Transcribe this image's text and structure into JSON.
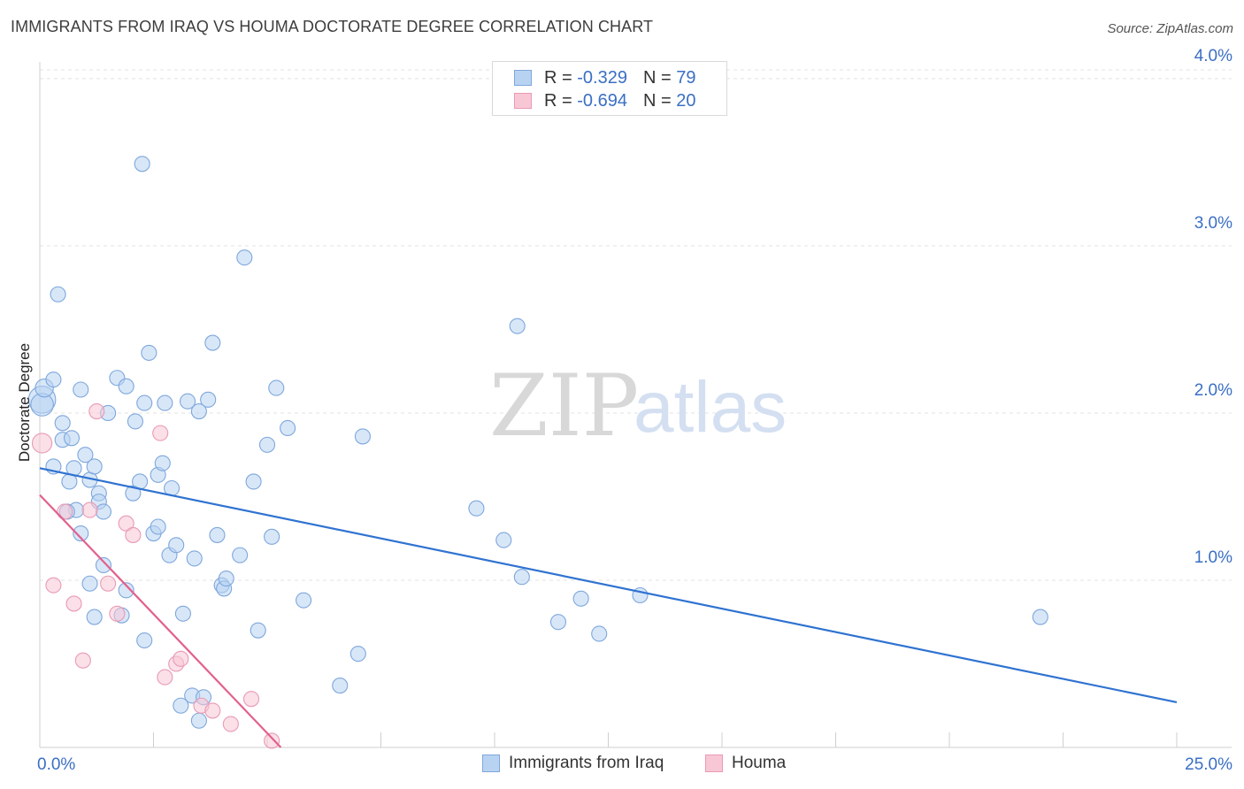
{
  "title": "IMMIGRANTS FROM IRAQ VS HOUMA DOCTORATE DEGREE CORRELATION CHART",
  "source": "Source: ZipAtlas.com",
  "watermark": {
    "zip": "ZIP",
    "atlas": "atlas"
  },
  "legend": {
    "rows": [
      {
        "r_label": "R =",
        "r_value": "-0.329",
        "n_label": "N =",
        "n_value": "79",
        "fill": "#b8d3f2",
        "stroke": "#7ea7dc"
      },
      {
        "r_label": "R =",
        "r_value": "-0.694",
        "n_label": "N =",
        "n_value": "20",
        "fill": "#f8c7d6",
        "stroke": "#e99ab4"
      }
    ]
  },
  "bottom_legend": [
    {
      "label": "Immigrants from Iraq",
      "fill": "#b8d3f2",
      "stroke": "#7ea7dc"
    },
    {
      "label": "Houma",
      "fill": "#f8c7d6",
      "stroke": "#e99ab4"
    }
  ],
  "chart_data": {
    "type": "scatter",
    "title": "IMMIGRANTS FROM IRAQ VS HOUMA DOCTORATE DEGREE CORRELATION CHART",
    "xlabel": "",
    "ylabel": "Doctorate Degree",
    "xlim": [
      0,
      25
    ],
    "ylim": [
      0,
      4.1
    ],
    "x_tick_labels": [
      {
        "value": 0,
        "label": "0.0%"
      },
      {
        "value": 25,
        "label": "25.0%"
      }
    ],
    "y_tick_labels": [
      {
        "value": 1,
        "label": "1.0%"
      },
      {
        "value": 2,
        "label": "2.0%"
      },
      {
        "value": 3,
        "label": "3.0%"
      },
      {
        "value": 4,
        "label": "4.0%"
      }
    ],
    "grid": true,
    "series": [
      {
        "name": "Immigrants from Iraq",
        "color": "#b8d3f2",
        "stroke": "#7ea7dc",
        "line_color": "#2f73d1",
        "trend": {
          "x0": 0,
          "y0": 1.67,
          "x1": 25,
          "y1": 0.27
        },
        "points": [
          [
            0.05,
            2.08,
            1.8
          ],
          [
            0.05,
            2.05,
            1.5
          ],
          [
            0.1,
            2.15,
            1.2
          ],
          [
            0.3,
            2.2,
            1.0
          ],
          [
            0.4,
            2.71,
            1.0
          ],
          [
            0.5,
            1.94,
            1.0
          ],
          [
            0.5,
            1.84,
            1.0
          ],
          [
            0.3,
            1.68,
            1.0
          ],
          [
            0.7,
            1.85,
            1.0
          ],
          [
            0.75,
            1.67,
            1.0
          ],
          [
            0.8,
            1.42,
            1.0
          ],
          [
            0.6,
            1.41,
            1.0
          ],
          [
            0.65,
            1.59,
            1.0
          ],
          [
            0.9,
            2.14,
            1.0
          ],
          [
            1.0,
            1.75,
            1.0
          ],
          [
            0.9,
            1.28,
            1.0
          ],
          [
            1.1,
            1.6,
            1.0
          ],
          [
            1.2,
            1.68,
            1.0
          ],
          [
            1.3,
            1.52,
            1.0
          ],
          [
            1.3,
            1.47,
            1.0
          ],
          [
            1.4,
            1.41,
            1.0
          ],
          [
            1.5,
            2.0,
            1.0
          ],
          [
            1.1,
            0.98,
            1.0
          ],
          [
            1.4,
            1.09,
            1.0
          ],
          [
            1.7,
            2.21,
            1.0
          ],
          [
            1.9,
            2.16,
            1.0
          ],
          [
            2.1,
            1.95,
            1.0
          ],
          [
            2.05,
            1.52,
            1.0
          ],
          [
            2.2,
            1.59,
            1.0
          ],
          [
            2.25,
            3.49,
            1.0
          ],
          [
            2.3,
            2.06,
            1.0
          ],
          [
            2.4,
            2.36,
            1.0
          ],
          [
            1.8,
            0.79,
            1.0
          ],
          [
            1.9,
            0.94,
            1.0
          ],
          [
            2.3,
            0.64,
            1.0
          ],
          [
            2.5,
            1.28,
            1.0
          ],
          [
            2.6,
            1.32,
            1.0
          ],
          [
            2.6,
            1.63,
            1.0
          ],
          [
            2.7,
            1.7,
            1.0
          ],
          [
            2.75,
            2.06,
            1.0
          ],
          [
            2.85,
            1.15,
            1.0
          ],
          [
            2.9,
            1.55,
            1.0
          ],
          [
            3.0,
            1.21,
            1.0
          ],
          [
            3.15,
            0.8,
            1.0
          ],
          [
            3.25,
            2.07,
            1.0
          ],
          [
            3.4,
            1.13,
            1.0
          ],
          [
            3.5,
            2.01,
            1.0
          ],
          [
            3.1,
            0.25,
            1.0
          ],
          [
            3.35,
            0.31,
            1.0
          ],
          [
            3.5,
            0.16,
            1.0
          ],
          [
            3.6,
            0.3,
            1.0
          ],
          [
            3.7,
            2.08,
            1.0
          ],
          [
            3.8,
            2.42,
            1.0
          ],
          [
            3.9,
            1.27,
            1.0
          ],
          [
            4.0,
            0.97,
            1.0
          ],
          [
            4.05,
            0.95,
            1.0
          ],
          [
            4.1,
            1.01,
            1.0
          ],
          [
            4.4,
            1.15,
            1.0
          ],
          [
            4.5,
            2.93,
            1.0
          ],
          [
            4.7,
            1.59,
            1.0
          ],
          [
            4.8,
            0.7,
            1.0
          ],
          [
            5.0,
            1.81,
            1.0
          ],
          [
            5.1,
            1.26,
            1.0
          ],
          [
            5.2,
            2.15,
            1.0
          ],
          [
            5.45,
            1.91,
            1.0
          ],
          [
            5.8,
            0.88,
            1.0
          ],
          [
            6.6,
            0.37,
            1.0
          ],
          [
            7.0,
            0.56,
            1.0
          ],
          [
            7.1,
            1.86,
            1.0
          ],
          [
            9.6,
            1.43,
            1.0
          ],
          [
            10.2,
            1.24,
            1.0
          ],
          [
            10.5,
            2.52,
            1.0
          ],
          [
            10.6,
            1.02,
            1.0
          ],
          [
            11.4,
            0.75,
            1.0
          ],
          [
            11.9,
            0.89,
            1.0
          ],
          [
            12.3,
            0.68,
            1.0
          ],
          [
            13.2,
            0.91,
            1.0
          ],
          [
            22.0,
            0.78,
            1.0
          ],
          [
            1.2,
            0.78,
            1.0
          ]
        ]
      },
      {
        "name": "Houma",
        "color": "#f8c7d6",
        "stroke": "#e99ab4",
        "line_color": "#e2608c",
        "trend": {
          "x0": 0,
          "y0": 1.51,
          "x1": 5.3,
          "y1": 0.0
        },
        "points": [
          [
            0.05,
            1.82,
            1.3
          ],
          [
            0.3,
            0.97,
            1.0
          ],
          [
            0.55,
            1.41,
            1.0
          ],
          [
            0.75,
            0.86,
            1.0
          ],
          [
            0.95,
            0.52,
            1.0
          ],
          [
            1.1,
            1.42,
            1.0
          ],
          [
            1.25,
            2.01,
            1.0
          ],
          [
            1.5,
            0.98,
            1.0
          ],
          [
            1.7,
            0.8,
            1.0
          ],
          [
            1.9,
            1.34,
            1.0
          ],
          [
            2.05,
            1.27,
            1.0
          ],
          [
            2.65,
            1.88,
            1.0
          ],
          [
            2.75,
            0.42,
            1.0
          ],
          [
            3.0,
            0.5,
            1.0
          ],
          [
            3.1,
            0.53,
            1.0
          ],
          [
            3.55,
            0.25,
            1.0
          ],
          [
            3.8,
            0.22,
            1.0
          ],
          [
            4.2,
            0.14,
            1.0
          ],
          [
            4.65,
            0.29,
            1.0
          ],
          [
            5.1,
            0.04,
            1.0
          ]
        ]
      }
    ]
  }
}
